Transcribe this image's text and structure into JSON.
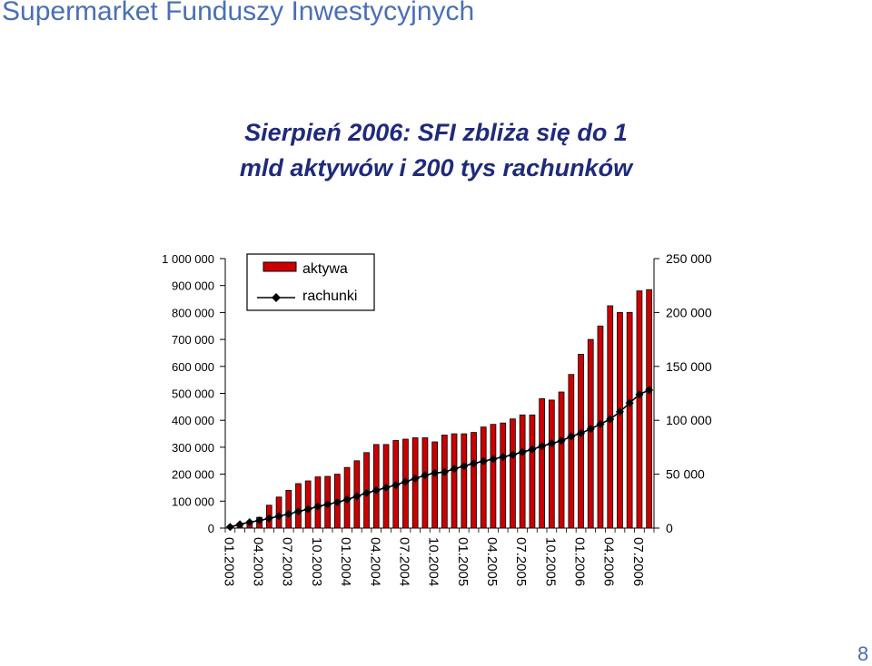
{
  "header": {
    "title": "Supermarket Funduszy Inwestycyjnych",
    "headline_line1": "Sierpień 2006: SFI zbliża się do 1",
    "headline_line2": "mld aktywów i 200 tys rachunków"
  },
  "footer": {
    "page_number": "8"
  },
  "colors": {
    "title": "#4a6fb5",
    "headline": "#1f2a7a",
    "bars": "#cc0000",
    "line": "#000000"
  },
  "chart_data": {
    "type": "bar",
    "title": "",
    "xlabel": "",
    "ylabel": "",
    "legend_placement": "top-left",
    "grid": false,
    "x": [
      "01.2003",
      "02.2003",
      "03.2003",
      "04.2003",
      "05.2003",
      "06.2003",
      "07.2003",
      "08.2003",
      "09.2003",
      "10.2003",
      "11.2003",
      "12.2003",
      "01.2004",
      "02.2004",
      "03.2004",
      "04.2004",
      "05.2004",
      "06.2004",
      "07.2004",
      "08.2004",
      "09.2004",
      "10.2004",
      "11.2004",
      "12.2004",
      "01.2005",
      "02.2005",
      "03.2005",
      "04.2005",
      "05.2005",
      "06.2005",
      "07.2005",
      "08.2005",
      "09.2005",
      "10.2005",
      "11.2005",
      "12.2005",
      "01.2006",
      "02.2006",
      "03.2006",
      "04.2006",
      "05.2006",
      "06.2006",
      "07.2006",
      "08.2006"
    ],
    "x_tick_labels": [
      "01.2003",
      "04.2003",
      "07.2003",
      "10.2003",
      "01.2004",
      "04.2004",
      "07.2004",
      "10.2004",
      "01.2005",
      "04.2005",
      "07.2005",
      "10.2005",
      "01.2006",
      "04.2006",
      "07.2006"
    ],
    "y_left": {
      "ylim": [
        0,
        1000000
      ],
      "ticks": [
        "0",
        "100 000",
        "200 000",
        "300 000",
        "400 000",
        "500 000",
        "600 000",
        "700 000",
        "800 000",
        "900 000",
        "1 000 000"
      ]
    },
    "y_right": {
      "ylim": [
        0,
        250000
      ],
      "ticks": [
        "0",
        "50 000",
        "100 000",
        "150 000",
        "200 000",
        "250 000"
      ]
    },
    "series": [
      {
        "name": "aktywa",
        "type": "bar",
        "axis": "left",
        "values": [
          8000,
          15000,
          25000,
          40000,
          85000,
          115000,
          140000,
          165000,
          175000,
          190000,
          192000,
          200000,
          225000,
          250000,
          280000,
          310000,
          310000,
          325000,
          330000,
          335000,
          335000,
          320000,
          345000,
          350000,
          350000,
          355000,
          375000,
          385000,
          390000,
          405000,
          420000,
          420000,
          480000,
          475000,
          505000,
          570000,
          645000,
          700000,
          750000,
          825000,
          800000,
          800000,
          880000,
          885000
        ]
      },
      {
        "name": "rachunki",
        "type": "line",
        "axis": "right",
        "values": [
          1000,
          3500,
          5500,
          7000,
          9000,
          11000,
          13000,
          15500,
          17500,
          20000,
          22000,
          24000,
          26500,
          29500,
          32500,
          35000,
          37500,
          40000,
          43000,
          46000,
          49000,
          51000,
          52000,
          55000,
          57500,
          60000,
          62000,
          64000,
          66000,
          68000,
          70500,
          73000,
          76000,
          78500,
          81000,
          85000,
          88000,
          92000,
          96500,
          101000,
          108000,
          116000,
          124000,
          128000
        ]
      }
    ]
  }
}
